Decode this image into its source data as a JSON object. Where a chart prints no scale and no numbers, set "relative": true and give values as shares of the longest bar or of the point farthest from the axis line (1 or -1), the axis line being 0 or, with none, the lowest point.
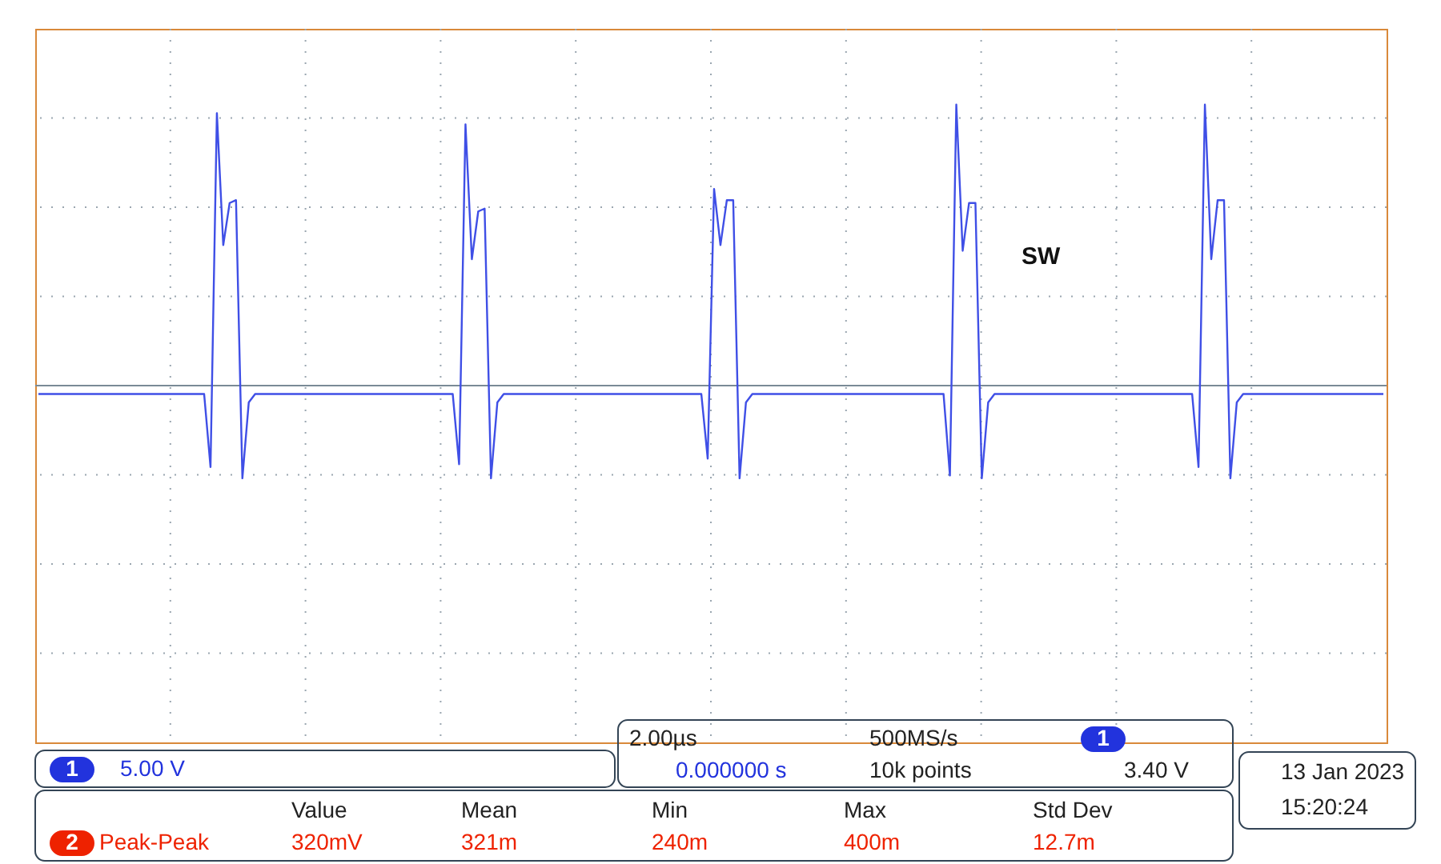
{
  "chart_data": {
    "type": "line",
    "relative": true,
    "grid": true,
    "legend": false,
    "categories": [
      null,
      null,
      null,
      null,
      null,
      null,
      null,
      null,
      null,
      null,
      null,
      null,
      null,
      null,
      null,
      null,
      null,
      null,
      null,
      null,
      null,
      null,
      null,
      null,
      null,
      null,
      null,
      null,
      null,
      null,
      null,
      null,
      null,
      null,
      null,
      null,
      null,
      null,
      null,
      null,
      null,
      null,
      null,
      null,
      null,
      null,
      null,
      null,
      null,
      null,
      null,
      null,
      null,
      null,
      null,
      null,
      null,
      null,
      null,
      null,
      null,
      null,
      null,
      null,
      null,
      null,
      null,
      null,
      null,
      null,
      null,
      null,
      null,
      null,
      null,
      null,
      null,
      null,
      null,
      null,
      null,
      null,
      null,
      null,
      null,
      null,
      null,
      null,
      null,
      null,
      null,
      null,
      null,
      null,
      null,
      null,
      null,
      null,
      null,
      null,
      null,
      null,
      null,
      null,
      null,
      null,
      null,
      null,
      null,
      null,
      null,
      null,
      null,
      null,
      null,
      null,
      null,
      null,
      null,
      null,
      null,
      null,
      null,
      null,
      null,
      null,
      null,
      null,
      null,
      null,
      null,
      null,
      null,
      null,
      null,
      null,
      null,
      null,
      null,
      null,
      null,
      null,
      null,
      null,
      null,
      null,
      null,
      null,
      null,
      null,
      null,
      null,
      null,
      null,
      null,
      null,
      null,
      null,
      null,
      null,
      null,
      null,
      null,
      null,
      null,
      null,
      null,
      null,
      null,
      null,
      null,
      null,
      null,
      null,
      null,
      null,
      null,
      null,
      null,
      null,
      null,
      null,
      null,
      null,
      null,
      null,
      null,
      null,
      null,
      null,
      null,
      null,
      null,
      null,
      null,
      null,
      null,
      null,
      null,
      null,
      null,
      null,
      null,
      null,
      null,
      null,
      null,
      null,
      null,
      null,
      null,
      null
    ],
    "series": [
      {
        "name": "SW",
        "color": "#3f4fe6",
        "values": [
          -0.03,
          -0.03,
          -0.03,
          -0.03,
          -0.03,
          -0.03,
          -0.03,
          -0.03,
          -0.03,
          -0.03,
          -0.03,
          -0.03,
          -0.03,
          -0.03,
          -0.03,
          -0.03,
          -0.03,
          -0.03,
          -0.03,
          -0.03,
          -0.03,
          -0.03,
          -0.03,
          -0.03,
          -0.03,
          -0.03,
          -0.03,
          -0.29,
          0.97,
          0.5,
          0.65,
          0.66,
          -0.33,
          -0.06,
          -0.03,
          -0.03,
          -0.03,
          -0.03,
          -0.03,
          -0.03,
          -0.03,
          -0.03,
          -0.03,
          -0.03,
          -0.03,
          -0.03,
          -0.03,
          -0.03,
          -0.03,
          -0.03,
          -0.03,
          -0.03,
          -0.03,
          -0.03,
          -0.03,
          -0.03,
          -0.03,
          -0.03,
          -0.03,
          -0.03,
          -0.03,
          -0.03,
          -0.03,
          -0.03,
          -0.03,
          -0.03,
          -0.28,
          0.93,
          0.45,
          0.62,
          0.63,
          -0.33,
          -0.06,
          -0.03,
          -0.03,
          -0.03,
          -0.03,
          -0.03,
          -0.03,
          -0.03,
          -0.03,
          -0.03,
          -0.03,
          -0.03,
          -0.03,
          -0.03,
          -0.03,
          -0.03,
          -0.03,
          -0.03,
          -0.03,
          -0.03,
          -0.03,
          -0.03,
          -0.03,
          -0.03,
          -0.03,
          -0.03,
          -0.03,
          -0.03,
          -0.03,
          -0.03,
          -0.03,
          -0.03,
          -0.03,
          -0.26,
          0.7,
          0.5,
          0.66,
          0.66,
          -0.33,
          -0.06,
          -0.03,
          -0.03,
          -0.03,
          -0.03,
          -0.03,
          -0.03,
          -0.03,
          -0.03,
          -0.03,
          -0.03,
          -0.03,
          -0.03,
          -0.03,
          -0.03,
          -0.03,
          -0.03,
          -0.03,
          -0.03,
          -0.03,
          -0.03,
          -0.03,
          -0.03,
          -0.03,
          -0.03,
          -0.03,
          -0.03,
          -0.03,
          -0.03,
          -0.03,
          -0.03,
          -0.03,
          -0.32,
          1.0,
          0.48,
          0.65,
          0.65,
          -0.33,
          -0.06,
          -0.03,
          -0.03,
          -0.03,
          -0.03,
          -0.03,
          -0.03,
          -0.03,
          -0.03,
          -0.03,
          -0.03,
          -0.03,
          -0.03,
          -0.03,
          -0.03,
          -0.03,
          -0.03,
          -0.03,
          -0.03,
          -0.03,
          -0.03,
          -0.03,
          -0.03,
          -0.03,
          -0.03,
          -0.03,
          -0.03,
          -0.03,
          -0.03,
          -0.03,
          -0.03,
          -0.03,
          -0.03,
          -0.29,
          1.0,
          0.45,
          0.66,
          0.66,
          -0.33,
          -0.06,
          -0.03,
          -0.03,
          -0.03,
          -0.03,
          -0.03,
          -0.03,
          -0.03,
          -0.03,
          -0.03,
          -0.03,
          -0.03,
          -0.03,
          -0.03,
          -0.03,
          -0.03,
          -0.03,
          -0.03,
          -0.03,
          -0.03,
          -0.03,
          -0.03,
          -0.03,
          -0.03
        ]
      }
    ],
    "annotations": [
      "1",
      "5.00 V",
      "2.00µs",
      "500MS/s",
      "0.000000 s",
      "10k points",
      "1",
      "3.40 V",
      "13 Jan  2023",
      "15:20:24",
      "Value",
      "Mean",
      "Min",
      "Max",
      "Std Dev",
      "2",
      "Peak-Peak",
      "320mV",
      "321m",
      "240m",
      "400m",
      "12.7m"
    ]
  }
}
